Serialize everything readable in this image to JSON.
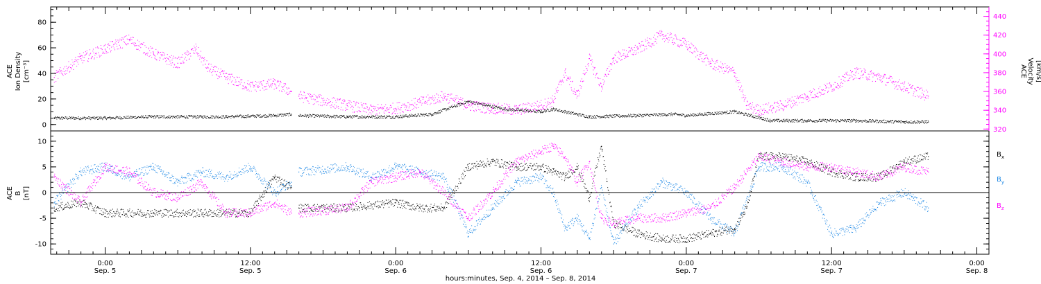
{
  "colors": {
    "black": "#000000",
    "magenta": "#ff00ff",
    "blue": "#1e88e5"
  },
  "chart_data": [
    {
      "type": "scatter",
      "panel": "top",
      "ylabel_left": [
        "ACE",
        "Ion Density",
        "[cm⁻³]"
      ],
      "ylabel_right": [
        "ACE",
        "Velocity",
        "[km/s]"
      ],
      "y_left_range": [
        -5,
        92
      ],
      "y_left_ticks": [
        "0",
        "20",
        "40",
        "60",
        "80"
      ],
      "y_right_range": [
        318,
        450
      ],
      "y_right_ticks": [
        "320",
        "340",
        "360",
        "380",
        "400",
        "420",
        "440"
      ],
      "series": [
        {
          "color": "#000000",
          "axis": "left",
          "x_hours": [
            -4.2,
            0,
            4,
            8,
            10,
            14,
            15.4,
            16,
            20,
            24,
            27,
            30,
            33,
            36,
            37,
            40,
            44,
            47,
            48,
            52,
            55,
            58,
            62,
            66,
            68
          ],
          "y": [
            5,
            5,
            6,
            6,
            6,
            7,
            8,
            7,
            6,
            6,
            8,
            18,
            12,
            10,
            12,
            6,
            7,
            8,
            7,
            10,
            3,
            3,
            3,
            2,
            2
          ]
        },
        {
          "color": "#ff00ff",
          "axis": "right",
          "x_hours": [
            -4.2,
            -2,
            0,
            2,
            4,
            6,
            7.5,
            8.5,
            10,
            12,
            14,
            15.4,
            16,
            18,
            20,
            22,
            24,
            26,
            28,
            30,
            32,
            34,
            36,
            37,
            38,
            39,
            40,
            41,
            42,
            44,
            46,
            48,
            50,
            52,
            53,
            54,
            56,
            58,
            60,
            62,
            64,
            66,
            68
          ],
          "y": [
            375,
            395,
            405,
            415,
            400,
            390,
            405,
            385,
            375,
            365,
            368,
            360,
            355,
            350,
            345,
            340,
            342,
            348,
            355,
            345,
            342,
            340,
            345,
            350,
            380,
            355,
            395,
            365,
            395,
            405,
            420,
            410,
            390,
            380,
            345,
            340,
            345,
            355,
            365,
            380,
            375,
            365,
            355
          ]
        }
      ]
    },
    {
      "type": "scatter",
      "panel": "bottom",
      "ylabel_left": [
        "ACE",
        "B",
        "[nT]"
      ],
      "ylim": [
        -12,
        12
      ],
      "y_ticks": [
        "-10",
        "-5",
        "0",
        "5",
        "10"
      ],
      "legend": [
        "Bx",
        "By",
        "Bz"
      ],
      "series": [
        {
          "name": "Bx",
          "color": "#000000",
          "x_hours": [
            -4.2,
            -2,
            0,
            4,
            8,
            10,
            12,
            14,
            15.4,
            16,
            20,
            24,
            26,
            28,
            30,
            32,
            34,
            36,
            37,
            38,
            39,
            40,
            41,
            42,
            44,
            46,
            48,
            50,
            52,
            53,
            54,
            56,
            58,
            60,
            62,
            64,
            66,
            68
          ],
          "y": [
            -3,
            -2,
            -4,
            -4,
            -4,
            -4,
            -4,
            3,
            1,
            -3,
            -3,
            -2,
            -3,
            -3,
            5,
            6,
            5,
            5,
            4,
            3,
            5,
            -1,
            9,
            -6,
            -8,
            -9,
            -9,
            -8,
            -7,
            -3,
            7,
            7,
            6,
            4,
            3,
            3,
            6,
            7
          ]
        },
        {
          "name": "By",
          "color": "#1e88e5",
          "x_hours": [
            -4.2,
            -2,
            0,
            2,
            4,
            6,
            8,
            10,
            12,
            14,
            15.4,
            16,
            20,
            22,
            24,
            26,
            28,
            30,
            32,
            34,
            36,
            37,
            38,
            39,
            40,
            41,
            42,
            44,
            46,
            48,
            50,
            52,
            54,
            56,
            58,
            60,
            62,
            64,
            66,
            68
          ],
          "y": [
            -2,
            4,
            5,
            3,
            5,
            2,
            4,
            3,
            5,
            0,
            2,
            4,
            5,
            3,
            5,
            4,
            3,
            -8,
            -3,
            2,
            3,
            0,
            -7,
            -5,
            -9,
            1,
            -10,
            -3,
            2,
            0,
            -5,
            -8,
            5,
            5,
            2,
            -8,
            -7,
            -2,
            0,
            -3
          ]
        },
        {
          "name": "Bz",
          "color": "#ff00ff",
          "x_hours": [
            -4.2,
            -2,
            0,
            2,
            4,
            6,
            8,
            10,
            12,
            14,
            15.4,
            16,
            20,
            22,
            24,
            26,
            28,
            30,
            32,
            34,
            36,
            37,
            38,
            39,
            40,
            41,
            42,
            44,
            46,
            48,
            50,
            52,
            54,
            56,
            58,
            60,
            62,
            64,
            66,
            68
          ],
          "y": [
            3,
            -2,
            5,
            4,
            0,
            -1,
            2,
            -4,
            -4,
            -2,
            -4,
            -4,
            -3,
            2,
            3,
            4,
            0,
            -5,
            0,
            6,
            8,
            9,
            7,
            2,
            6,
            -5,
            -6,
            -5,
            -5,
            -4,
            -3,
            1,
            7,
            6,
            5,
            5,
            4,
            3,
            5,
            4
          ]
        }
      ]
    }
  ],
  "x_axis": {
    "range_hours": [
      -4.5,
      73
    ],
    "tick_hours": [
      0,
      12,
      24,
      36,
      48,
      60,
      72
    ],
    "tick_time": [
      "0:00",
      "12:00",
      "0:00",
      "12:00",
      "0:00",
      "12:00",
      "0:00"
    ],
    "tick_date": [
      "Sep. 5",
      "Sep. 5",
      "Sep. 6",
      "Sep. 6",
      "Sep. 7",
      "Sep. 7",
      "Sep. 8"
    ],
    "title": "hours:minutes, Sep.  4, 2014 – Sep.  8, 2014"
  }
}
